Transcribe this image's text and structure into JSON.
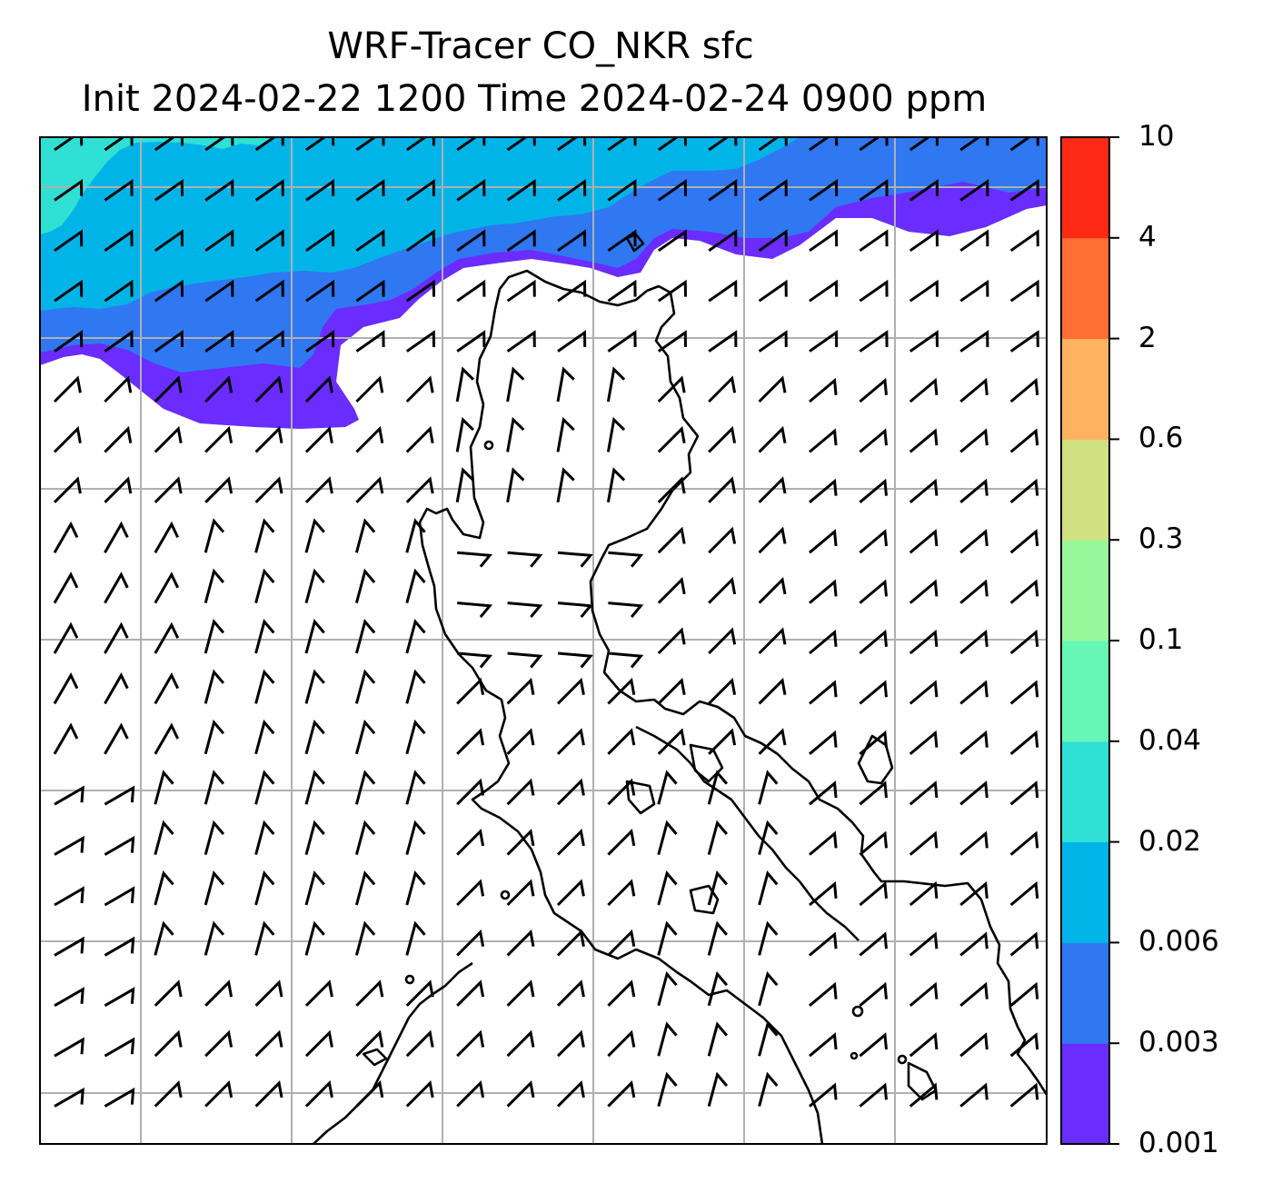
{
  "title_line1": "WRF-Tracer CO_NKR sfc",
  "title_line2": "Init 2024-02-22 1200 Time 2024-02-24 0900 ppm",
  "colorbar": {
    "levels": [
      "0.001",
      "0.003",
      "0.006",
      "0.02",
      "0.04",
      "0.1",
      "0.3",
      "0.6",
      "2",
      "4",
      "10"
    ],
    "colors": [
      "#6a2cff",
      "#3077f2",
      "#00b4e8",
      "#30e0d4",
      "#66f7b7",
      "#98f79a",
      "#d1e080",
      "#ffb25f",
      "#ff6f35",
      "#ff2a16"
    ]
  },
  "map": {
    "type": "filled contour with wind barbs and coastlines",
    "background": "#ffffff",
    "gridlines": true,
    "grid_color": "#b0b0b0",
    "wind_barbs": true,
    "field_regions": [
      {
        "level": "0.001-0.003",
        "color": "#6a2cff"
      },
      {
        "level": "0.003-0.006",
        "color": "#3077f2"
      },
      {
        "level": "0.006-0.02",
        "color": "#00b4e8"
      },
      {
        "level": "0.02-0.04",
        "color": "#30e0d4"
      }
    ]
  }
}
